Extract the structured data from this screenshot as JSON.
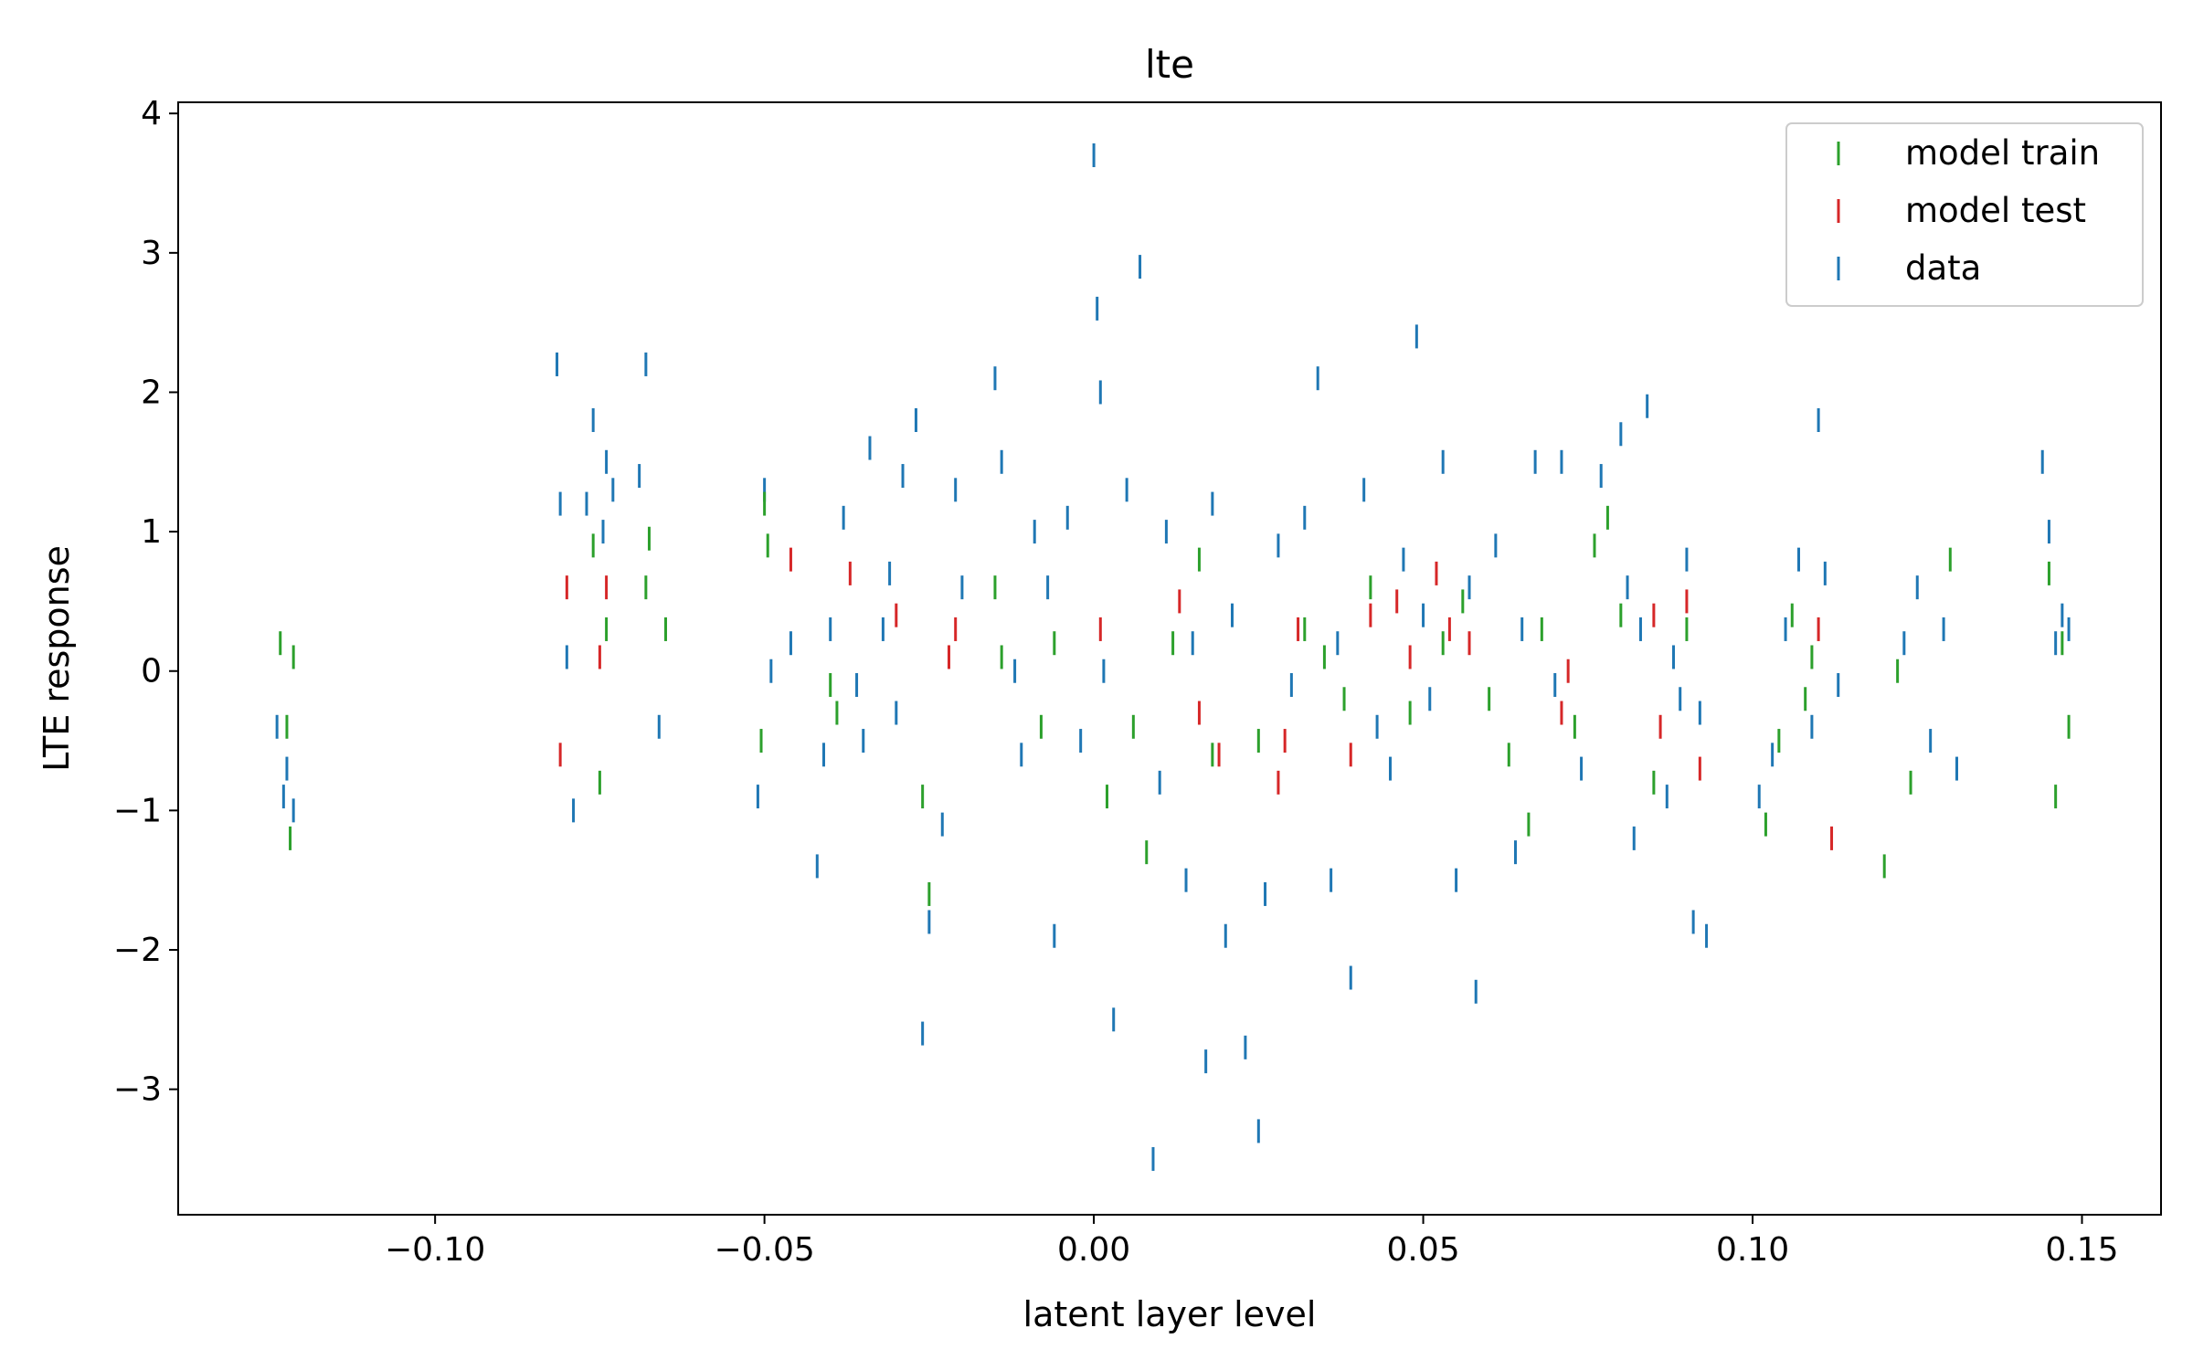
{
  "chart_data": {
    "type": "scatter",
    "marker": "vertical-tick",
    "title": "lte",
    "xlabel": "latent layer level",
    "ylabel": "LTE response",
    "xlim": [
      -0.139,
      0.162
    ],
    "ylim": [
      -3.9,
      4.08
    ],
    "xticks": [
      -0.1,
      -0.05,
      0.0,
      0.05,
      0.1,
      0.15
    ],
    "xtick_labels": [
      "−0.10",
      "−0.05",
      "0.00",
      "0.05",
      "0.10",
      "0.15"
    ],
    "yticks": [
      -3,
      -2,
      -1,
      0,
      1,
      2,
      3,
      4
    ],
    "ytick_labels": [
      "−3",
      "−2",
      "−1",
      "0",
      "1",
      "2",
      "3",
      "4"
    ],
    "grid": false,
    "legend_position": "upper right",
    "series": [
      {
        "name": "model train",
        "color": "#2ca02c",
        "x": [
          -0.1235,
          -0.1225,
          -0.122,
          -0.1215,
          -0.076,
          -0.075,
          -0.074,
          -0.068,
          -0.0675,
          -0.065,
          -0.0505,
          -0.05,
          -0.0495,
          -0.04,
          -0.039,
          -0.026,
          -0.025,
          -0.015,
          -0.014,
          -0.008,
          -0.006,
          0.002,
          0.006,
          0.008,
          0.012,
          0.016,
          0.018,
          0.025,
          0.032,
          0.035,
          0.038,
          0.042,
          0.048,
          0.053,
          0.056,
          0.06,
          0.063,
          0.066,
          0.068,
          0.073,
          0.076,
          0.078,
          0.08,
          0.085,
          0.09,
          0.102,
          0.104,
          0.106,
          0.108,
          0.109,
          0.12,
          0.122,
          0.124,
          0.13,
          0.145,
          0.146,
          0.147,
          0.148
        ],
        "y": [
          0.2,
          -0.4,
          -1.2,
          0.1,
          0.9,
          -0.8,
          0.3,
          0.6,
          0.95,
          0.3,
          -0.5,
          1.2,
          0.9,
          -0.1,
          -0.3,
          -0.9,
          -1.6,
          0.6,
          0.1,
          -0.4,
          0.2,
          -0.9,
          -0.4,
          -1.3,
          0.2,
          0.8,
          -0.6,
          -0.5,
          0.3,
          0.1,
          -0.2,
          0.6,
          -0.3,
          0.2,
          0.5,
          -0.2,
          -0.6,
          -1.1,
          0.3,
          -0.4,
          0.9,
          1.1,
          0.4,
          -0.8,
          0.3,
          -1.1,
          -0.5,
          0.4,
          -0.2,
          0.1,
          -1.4,
          0.0,
          -0.8,
          0.8,
          0.7,
          -0.9,
          0.2,
          -0.4
        ]
      },
      {
        "name": "model test",
        "color": "#d62728",
        "x": [
          -0.081,
          -0.08,
          -0.075,
          -0.074,
          -0.046,
          -0.037,
          -0.03,
          -0.022,
          -0.021,
          0.001,
          0.013,
          0.016,
          0.019,
          0.028,
          0.029,
          0.031,
          0.039,
          0.042,
          0.046,
          0.048,
          0.052,
          0.054,
          0.057,
          0.071,
          0.072,
          0.085,
          0.086,
          0.09,
          0.092,
          0.11,
          0.112
        ],
        "y": [
          -0.6,
          0.6,
          0.1,
          0.6,
          0.8,
          0.7,
          0.4,
          0.1,
          0.3,
          0.3,
          0.5,
          -0.3,
          -0.6,
          -0.8,
          -0.5,
          0.3,
          -0.6,
          0.4,
          0.5,
          0.1,
          0.7,
          0.3,
          0.2,
          -0.3,
          0.0,
          0.4,
          -0.4,
          0.5,
          -0.7,
          0.3,
          -1.2
        ]
      },
      {
        "name": "data",
        "color": "#1f77b4",
        "x": [
          -0.124,
          -0.123,
          -0.1225,
          -0.1215,
          -0.0815,
          -0.081,
          -0.08,
          -0.079,
          -0.077,
          -0.076,
          -0.0745,
          -0.074,
          -0.073,
          -0.069,
          -0.068,
          -0.066,
          -0.051,
          -0.05,
          -0.049,
          -0.046,
          -0.042,
          -0.041,
          -0.04,
          -0.038,
          -0.036,
          -0.035,
          -0.034,
          -0.032,
          -0.031,
          -0.03,
          -0.029,
          -0.027,
          -0.026,
          -0.025,
          -0.023,
          -0.021,
          -0.02,
          -0.015,
          -0.014,
          -0.012,
          -0.011,
          -0.009,
          -0.007,
          -0.006,
          -0.004,
          -0.002,
          0.0,
          0.0005,
          0.001,
          0.0015,
          0.003,
          0.005,
          0.007,
          0.009,
          0.01,
          0.011,
          0.014,
          0.015,
          0.017,
          0.018,
          0.02,
          0.021,
          0.023,
          0.025,
          0.026,
          0.028,
          0.03,
          0.032,
          0.034,
          0.036,
          0.037,
          0.039,
          0.041,
          0.043,
          0.045,
          0.047,
          0.049,
          0.05,
          0.051,
          0.053,
          0.055,
          0.057,
          0.058,
          0.061,
          0.064,
          0.065,
          0.067,
          0.07,
          0.071,
          0.074,
          0.077,
          0.08,
          0.081,
          0.082,
          0.083,
          0.084,
          0.087,
          0.088,
          0.089,
          0.09,
          0.091,
          0.092,
          0.093,
          0.101,
          0.103,
          0.105,
          0.107,
          0.109,
          0.11,
          0.111,
          0.113,
          0.123,
          0.125,
          0.127,
          0.129,
          0.131,
          0.144,
          0.145,
          0.146,
          0.147,
          0.148
        ],
        "y": [
          -0.4,
          -0.9,
          -0.7,
          -1.0,
          2.2,
          1.2,
          0.1,
          -1.0,
          1.2,
          1.8,
          1.0,
          1.5,
          1.3,
          1.4,
          2.2,
          -0.4,
          -0.9,
          1.3,
          0.0,
          0.2,
          -1.4,
          -0.6,
          0.3,
          1.1,
          -0.1,
          -0.5,
          1.6,
          0.3,
          0.7,
          -0.3,
          1.4,
          1.8,
          -2.6,
          -1.8,
          -1.1,
          1.3,
          0.6,
          2.1,
          1.5,
          0.0,
          -0.6,
          1.0,
          0.6,
          -1.9,
          1.1,
          -0.5,
          3.7,
          2.6,
          2.0,
          0.0,
          -2.5,
          1.3,
          2.9,
          -3.5,
          -0.8,
          1.0,
          -1.5,
          0.2,
          -2.8,
          1.2,
          -1.9,
          0.4,
          -2.7,
          -3.3,
          -1.6,
          0.9,
          -0.1,
          1.1,
          2.1,
          -1.5,
          0.2,
          -2.2,
          1.3,
          -0.4,
          -0.7,
          0.8,
          2.4,
          0.4,
          -0.2,
          1.5,
          -1.5,
          0.6,
          -2.3,
          0.9,
          -1.3,
          0.3,
          1.5,
          -0.1,
          1.5,
          -0.7,
          1.4,
          1.7,
          0.6,
          -1.2,
          0.3,
          1.9,
          -0.9,
          0.1,
          -0.2,
          0.8,
          -1.8,
          -0.3,
          -1.9,
          -0.9,
          -0.6,
          0.3,
          0.8,
          -0.4,
          1.8,
          0.7,
          -0.1,
          0.2,
          0.6,
          -0.5,
          0.3,
          -0.7,
          1.5,
          1.0,
          0.2,
          0.4,
          0.3
        ]
      }
    ]
  }
}
